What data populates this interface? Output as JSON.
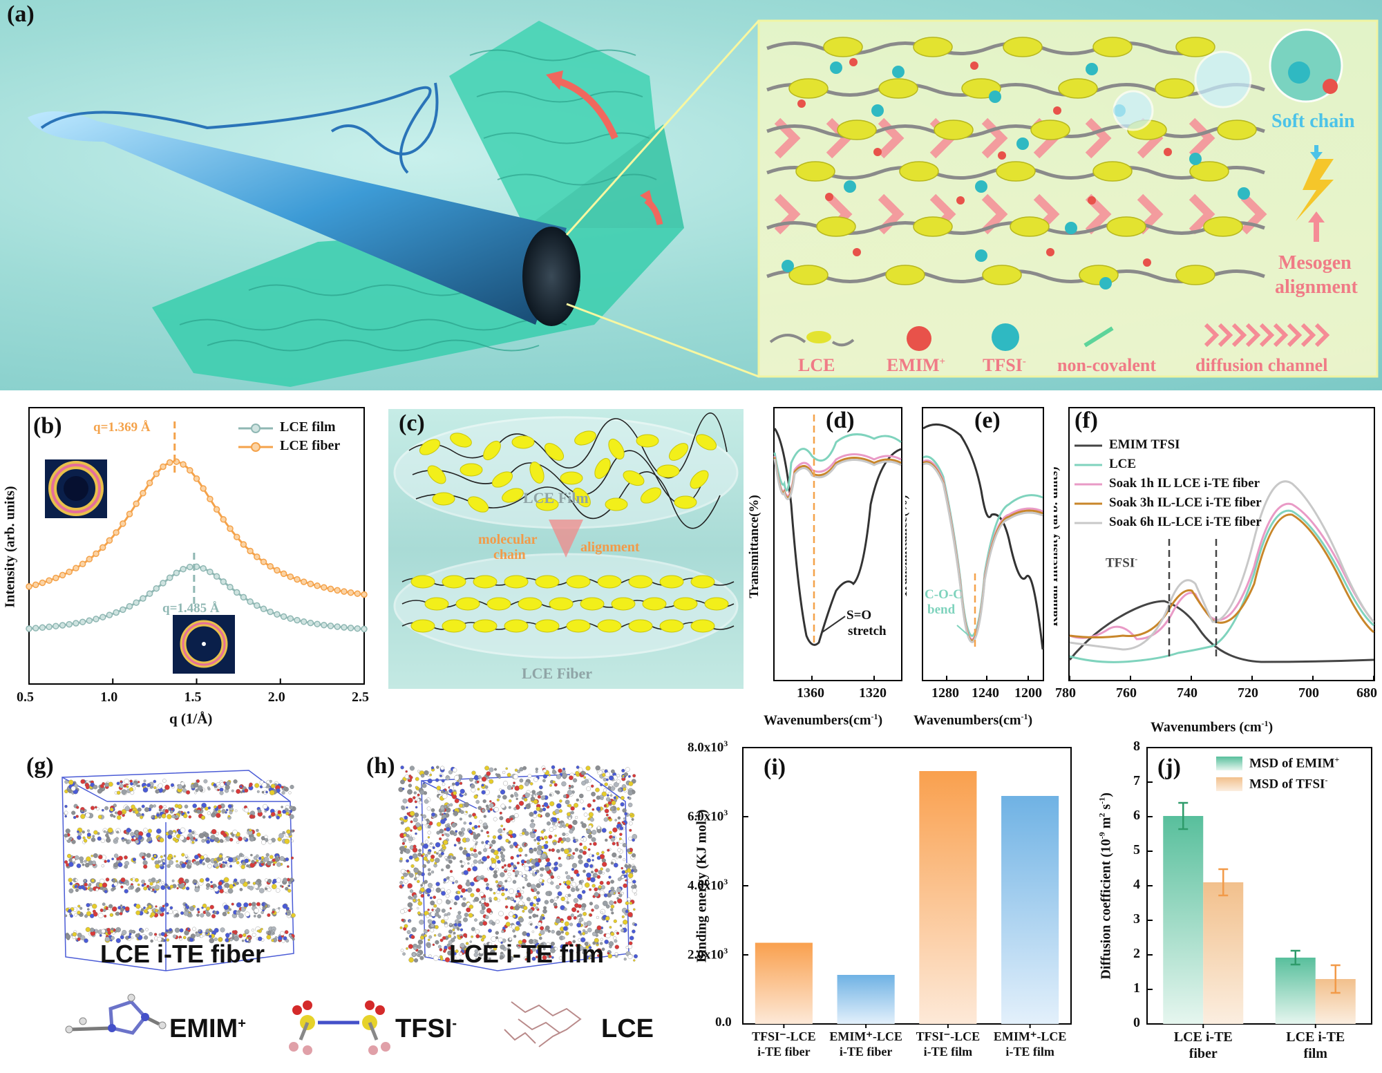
{
  "panel_a": {
    "label": "(a)",
    "soft_chain": "Soft chain",
    "mesogen_line1": "Mesogen",
    "mesogen_line2": "alignment",
    "legend": [
      "LCE",
      "EMIM",
      "TFSI",
      "non-covalent",
      "diffusion channel"
    ],
    "emim_sup": "+",
    "tfsi_sup": "-",
    "colors": {
      "mesogen": "#e3e330",
      "emim": "#e8524a",
      "tfsi": "#2fb9c2",
      "channel": "#f58c96",
      "accent_text": "#f07b86",
      "soft_chain_text": "#4cc3e8"
    }
  },
  "panel_b": {
    "label": "(b)",
    "ylabel": "Intensity (arb. units)",
    "xlabel": "q (1/Å)",
    "xticks": [
      "0.5",
      "1.0",
      "1.5",
      "2.0",
      "2.5"
    ],
    "peak_fiber": "q=1.369 Å",
    "peak_film": "q=1.485 Å",
    "legend_film": "LCE film",
    "legend_fiber": "LCE fiber"
  },
  "panel_c": {
    "label": "(c)",
    "film": "LCE Film",
    "fiber": "LCE Fiber",
    "mol1": "molecular",
    "mol2": "chain",
    "align": "alignment"
  },
  "panel_d": {
    "label": "(d)",
    "ylabel": "Transmittance(%)",
    "xticks": [
      "1360",
      "1320"
    ],
    "ann1": "S=O",
    "ann2": "stretch"
  },
  "panel_e": {
    "label": "(e)",
    "ylabel": "Transmittance(%)",
    "xticks": [
      "1280",
      "1240",
      "1200"
    ],
    "ann1": "C-O-C",
    "ann2": "bend"
  },
  "wavenumbers_label": "Wavenumbers(cm",
  "wavenumbers_sup": "-1",
  "panel_f": {
    "label": "(f)",
    "ylabel": "Raman Intensity (arb. units)",
    "xlabel": "Wavenumbers (cm",
    "xlabel_sup": "-1",
    "xticks": [
      "780",
      "760",
      "740",
      "720",
      "700",
      "680"
    ],
    "legend": [
      "EMIM TFSI",
      "LCE",
      "Soak 1h IL LCE i-TE fiber",
      "Soak 3h IL-LCE i-TE fiber",
      "Soak 6h IL-LCE i-TE fiber"
    ],
    "tfsi_label": "TFSI",
    "tfsi_sup": "-"
  },
  "panel_g": {
    "label": "(g)",
    "caption": "LCE i-TE fiber"
  },
  "panel_h": {
    "label": "(h)",
    "caption": "LCE i-TE film"
  },
  "molecules": {
    "emim": "EMIM",
    "emim_sup": "+",
    "tfsi": "TFSI",
    "tfsi_sup": "-",
    "lce": "LCE"
  },
  "chart_data": [
    {
      "type": "line",
      "panel": "b",
      "title": "",
      "xlabel": "q (1/Å)",
      "ylabel": "Intensity (arb. units)",
      "xlim": [
        0.5,
        2.5
      ],
      "series": [
        {
          "name": "LCE film",
          "peak_q": 1.485,
          "color": "#8fb7b3"
        },
        {
          "name": "LCE fiber",
          "peak_q": 1.369,
          "color": "#f4a24a"
        }
      ]
    },
    {
      "type": "bar",
      "panel": "i",
      "title": "",
      "ylabel": "Binding energy (KJ mol",
      "ylabel_sup": "-1",
      "ylim": [
        0,
        8000
      ],
      "yticks": [
        "0.0",
        "2.0x10",
        "4.0x10",
        "6.0x10",
        "8.0x10"
      ],
      "ytick_sup": "3",
      "categories": [
        [
          "TFSI⁻-LCE",
          "i-TE fiber"
        ],
        [
          "EMIM⁺-LCE",
          "i-TE fiber"
        ],
        [
          "TFSI⁻-LCE",
          "i-TE film"
        ],
        [
          "EMIM⁺-LCE",
          "i-TE film"
        ]
      ],
      "values": [
        2350,
        1420,
        7320,
        6600
      ],
      "colors": [
        "#f9a04e",
        "#6fb2e4",
        "#f9a04e",
        "#6fb2e4"
      ]
    },
    {
      "type": "bar",
      "panel": "j",
      "title": "",
      "ylabel": "Diffusion coefficient (10",
      "ylabel_mid": " m",
      "ylabel_end": " s",
      "ylabel_sups": [
        "-9",
        "2",
        "-1"
      ],
      "ylim": [
        0,
        8
      ],
      "yticks": [
        "0",
        "1",
        "2",
        "3",
        "4",
        "5",
        "6",
        "7",
        "8"
      ],
      "categories": [
        [
          "LCE i-TE",
          "fiber"
        ],
        [
          "LCE i-TE",
          "film"
        ]
      ],
      "series": [
        {
          "name": "MSD of EMIM",
          "sup": "+",
          "values": [
            6.02,
            1.92
          ],
          "errors": [
            0.38,
            0.2
          ],
          "color": "#58bf9c",
          "err_color": "#2e9b6a"
        },
        {
          "name": "MSD of TFSI",
          "sup": "-",
          "values": [
            4.1,
            1.3
          ],
          "errors": [
            0.38,
            0.4
          ],
          "color": "#f2c08c",
          "err_color": "#f29a48"
        }
      ]
    }
  ]
}
